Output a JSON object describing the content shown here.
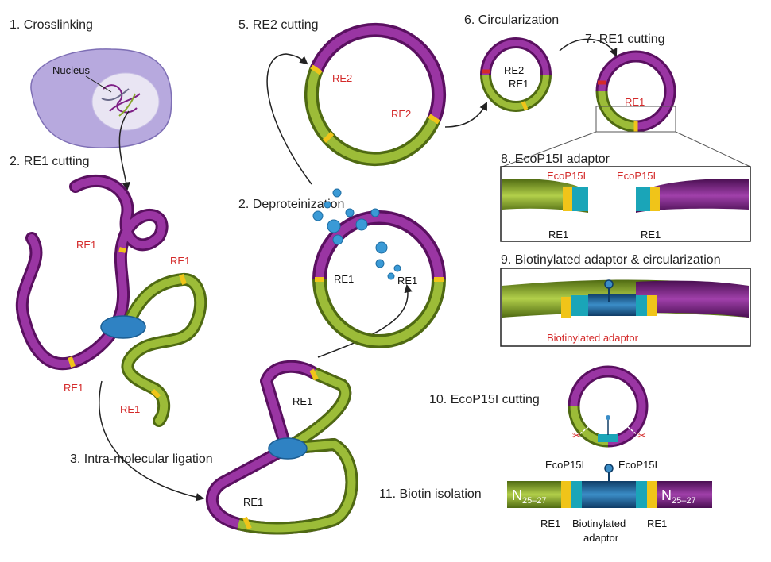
{
  "steps": {
    "s1": "1. Crosslinking",
    "s2a": "2. RE1 cutting",
    "s2b": "2. Deproteinization",
    "s3": "3. Intra-molecular ligation",
    "s5": "5. RE2 cutting",
    "s6": "6. Circularization",
    "s7": "7. RE1 cutting",
    "s8": "8. EcoP15I adaptor",
    "s9": "9. Biotinylated adaptor & circularization",
    "s10": "10. EcoP15I cutting",
    "s11": "11. Biotin isolation"
  },
  "labels": {
    "nucleus": "Nucleus",
    "re1": "RE1",
    "re2": "RE2",
    "ecop": "EcoP15I",
    "biotin_adaptor": "Biotinylated adaptor",
    "biotinylated": "Biotinylated",
    "adaptor": "adaptor",
    "n_base": "N",
    "n_sub": "25–27"
  },
  "colors": {
    "purple": "#7e1f86",
    "green": "#86a62a",
    "blue_clamp": "#2f82c3",
    "red_label": "#d42a2a",
    "teal": "#1aa5b8",
    "yellow": "#f0c419",
    "nucleus": "#b7a9de"
  }
}
